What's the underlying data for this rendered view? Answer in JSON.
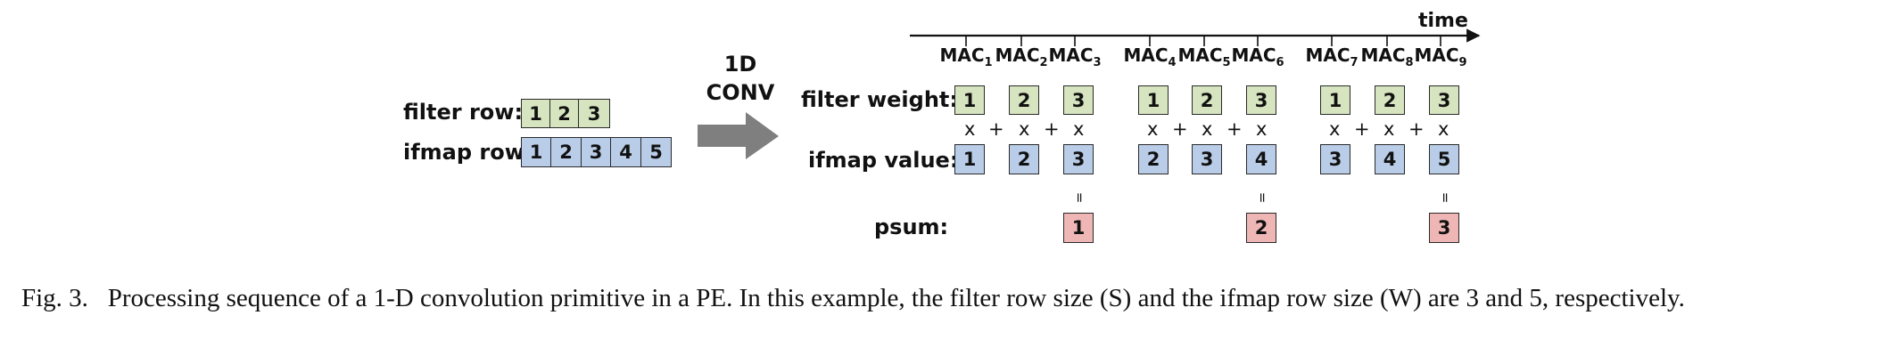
{
  "left": {
    "filter_row_label": "filter row:",
    "ifmap_row_label": "ifmap row:",
    "filter_row": [
      "1",
      "2",
      "3"
    ],
    "ifmap_row": [
      "1",
      "2",
      "3",
      "4",
      "5"
    ]
  },
  "arrow_label": {
    "line1": "1D",
    "line2": "CONV"
  },
  "timeline": {
    "time_label": "time",
    "mac_base": "MAC",
    "mac_subscripts": [
      "1",
      "2",
      "3",
      "4",
      "5",
      "6",
      "7",
      "8",
      "9"
    ]
  },
  "row_labels": {
    "filter_weight": "filter weight:",
    "ifmap_value": "ifmap value:",
    "psum": "psum:"
  },
  "groups": [
    {
      "weights": [
        "1",
        "2",
        "3"
      ],
      "ifmap": [
        "1",
        "2",
        "3"
      ],
      "psum": "1"
    },
    {
      "weights": [
        "1",
        "2",
        "3"
      ],
      "ifmap": [
        "2",
        "3",
        "4"
      ],
      "psum": "2"
    },
    {
      "weights": [
        "1",
        "2",
        "3"
      ],
      "ifmap": [
        "3",
        "4",
        "5"
      ],
      "psum": "3"
    }
  ],
  "ops": {
    "mul": "x",
    "add": "+",
    "eq": "="
  },
  "colors": {
    "filter": "#d6e4bf",
    "ifmap": "#b9cde8",
    "psum": "#efb6b6",
    "arrow": "#7f7f7f"
  },
  "caption": {
    "prefix": "Fig. 3.",
    "text": "Processing sequence of a 1-D convolution primitive in a PE. In this example, the filter row size (S) and the ifmap row size (W) are 3 and 5, respectively."
  }
}
